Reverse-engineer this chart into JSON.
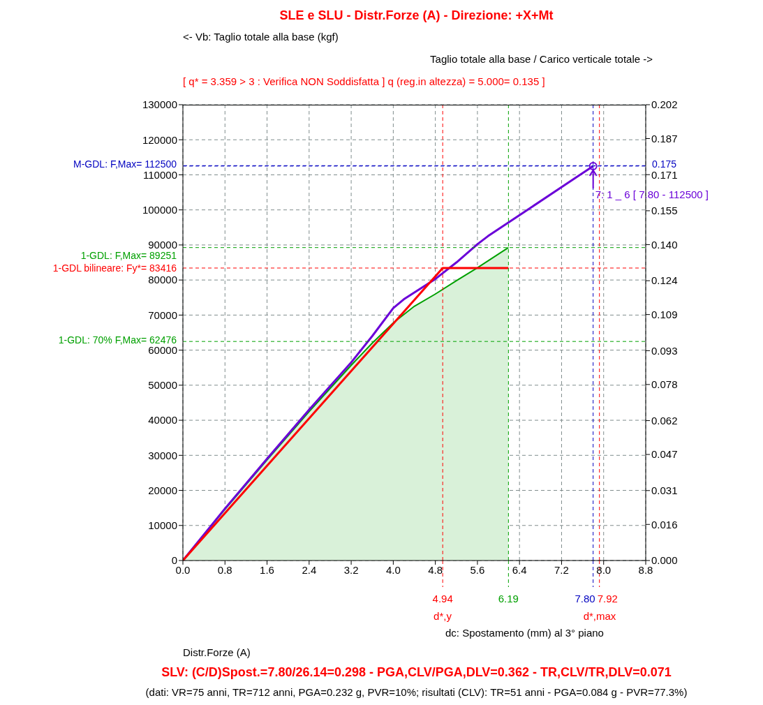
{
  "chart_data": {
    "type": "line",
    "title": "SLE e SLU - Distr.Forze (A) - Direzione: +X+Mt",
    "subtitle": "[ q* = 3.359 > 3 : Verifica NON Soddisfatta ] q (reg.in altezza) = 5.000= 0.135 ]",
    "y2label": "Taglio totale alla base / Carico verticale totale ->",
    "series": [
      {
        "type": "area",
        "color": "#00a000",
        "x": [
          0,
          0.8,
          1.6,
          2.4,
          3.2,
          3.6,
          4.0,
          4.4,
          4.8,
          5.2,
          5.6,
          6.19
        ],
        "values": [
          0,
          14600,
          28700,
          42500,
          55700,
          62000,
          67800,
          72500,
          76000,
          79800,
          83500,
          89251
        ]
      },
      {
        "color": "#6a00d8",
        "x": [
          0,
          0.8,
          1.6,
          2.4,
          3.2,
          3.6,
          4.0,
          4.2,
          4.8,
          5.2,
          5.6,
          5.8,
          6.6,
          7.8
        ],
        "values": [
          0,
          14800,
          29000,
          43000,
          56500,
          64000,
          72000,
          74500,
          80300,
          85000,
          90200,
          92500,
          100500,
          112500
        ]
      },
      {
        "color": "#ff0000",
        "x": [
          0,
          4.94,
          6.19
        ],
        "values": [
          0,
          83416,
          83416
        ]
      }
    ],
    "xlim": [
      0,
      8.8
    ],
    "xticks": [
      {
        "value": 0,
        "label": "0.0"
      },
      0.8,
      1.6,
      2.4,
      3.2,
      {
        "value": 4,
        "label": "4.0"
      },
      4.8,
      5.6,
      6.4,
      7.2,
      {
        "value": 8,
        "label": "8.0"
      },
      8.8
    ],
    "ylim": [
      0,
      130000
    ],
    "yticks": [
      0,
      10000,
      20000,
      30000,
      40000,
      50000,
      60000,
      70000,
      80000,
      90000,
      100000,
      110000,
      120000,
      130000
    ],
    "y2lim": [
      0,
      0.202
    ],
    "y2ticks": [
      {
        "value": 0,
        "label": "0.000"
      },
      0.016,
      0.031,
      0.047,
      0.062,
      0.078,
      0.093,
      0.109,
      0.124,
      {
        "value": 0.14,
        "label": "0.140"
      },
      0.155,
      0.171,
      0.187,
      0.202
    ],
    "grid": true,
    "legend": false,
    "line_style": "solid",
    "ref_lines": [
      {
        "axis": "y",
        "value": 112500,
        "label": "M-GDL: F,Max= 112500",
        "color": "#0000c0",
        "line_style": "dashed"
      },
      {
        "axis": "y2",
        "value": 0.175,
        "label": "0.175",
        "color": "#0000c0",
        "line_style": "dashed"
      },
      {
        "axis": "y",
        "value": 89251,
        "label": "1-GDL: F,Max= 89251",
        "color": "#00a000",
        "line_style": "dashed"
      },
      {
        "axis": "y",
        "value": 83416,
        "label": "1-GDL bilineare: Fy*= 83416",
        "color": "#ff0000",
        "line_style": "dashed"
      },
      {
        "axis": "y",
        "value": 62476,
        "label": "1-GDL: 70% F,Max= 62476",
        "color": "#00a000",
        "line_style": "dashed"
      },
      {
        "axis": "x",
        "value": 4.94,
        "label": "4.94",
        "color": "#ff0000",
        "line_style": "dashed"
      },
      {
        "axis": "x",
        "value": 6.19,
        "label": "6.19",
        "color": "#00a000",
        "line_style": "dashed"
      },
      {
        "axis": "x",
        "value": 7.8,
        "label": "7.80",
        "color": "#0000c0",
        "line_style": "dashed"
      },
      {
        "axis": "x",
        "value": 7.92,
        "label": "7.92",
        "color": "#ff0000",
        "line_style": "dashed"
      }
    ],
    "annotations": [
      {
        "text": "7: 1 _ 6 [ 7.80 - 112500 ]",
        "x": 7.8,
        "y": 112500
      },
      "<- Vb: Taglio totale alla base (kgf)",
      "d*,y",
      "d*,max",
      "dc: Spostamento (mm) al 3° piano",
      "Distr.Forze (A)",
      "SLV: (C/D)Spost.=7.80/26.14=0.298 - PGA,CLV/PGA,DLV=0.362 - TR,CLV/TR,DLV=0.071",
      "(dati: VR=75 anni, TR=712 anni, PGA=0.232 g, PVR=10%; risultati (CLV): TR=51 anni - PGA=0.084 g - PVR=77.3%)"
    ]
  }
}
